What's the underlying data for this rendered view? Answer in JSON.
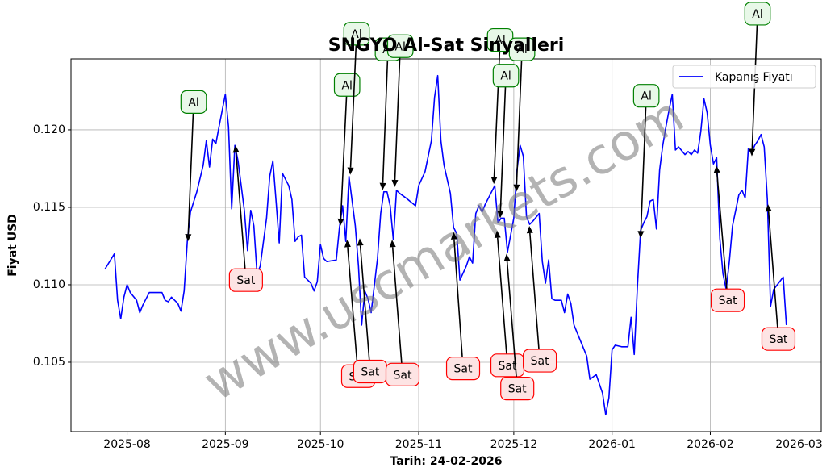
{
  "chart_data": {
    "type": "line",
    "title": "SNGYO Al-Sat Sinyalleri",
    "xlabel": "Tarih: 24-02-2026",
    "ylabel": "Fiyat USD",
    "watermark": "www.uscmarkets.com",
    "legend": "upper right",
    "grid": true,
    "xlim": [
      -10.7,
      226
    ],
    "ylim": [
      0.10052,
      0.12458
    ],
    "xticks": [
      {
        "value": 7,
        "label": "2025-08"
      },
      {
        "value": 38,
        "label": "2025-09"
      },
      {
        "value": 68,
        "label": "2025-10"
      },
      {
        "value": 99,
        "label": "2025-11"
      },
      {
        "value": 129,
        "label": "2025-12"
      },
      {
        "value": 160,
        "label": "2026-01"
      },
      {
        "value": 191,
        "label": "2026-02"
      },
      {
        "value": 219,
        "label": "2026-03"
      }
    ],
    "yticks": [
      0.105,
      {
        "value": 0.11,
        "label": "0.110"
      },
      0.115,
      {
        "value": 0.12,
        "label": "0.120"
      }
    ],
    "series": [
      {
        "name": "Kapanış Fiyatı",
        "color": "#0000ff",
        "x": [
          0,
          3,
          4,
          5,
          6,
          7,
          8,
          10,
          11,
          12,
          14,
          17,
          18,
          19,
          20,
          21,
          23,
          24,
          25,
          26,
          27,
          29,
          31,
          32,
          33,
          34,
          35,
          36,
          38,
          39,
          40,
          41,
          42,
          44,
          45,
          46,
          47,
          48,
          49,
          51,
          52,
          53,
          54,
          55,
          56,
          58,
          59,
          60,
          61,
          62,
          63,
          65,
          66,
          67,
          68,
          69,
          70,
          73,
          74,
          75,
          76,
          77,
          78,
          79,
          80,
          81,
          82,
          83,
          84,
          86,
          87,
          88,
          89,
          90,
          91,
          92,
          93,
          95,
          98,
          99,
          101,
          102,
          103,
          104,
          105,
          106,
          107,
          109,
          110,
          111,
          112,
          114,
          115,
          116,
          117,
          118,
          119,
          120,
          121,
          123,
          124,
          125,
          126,
          127,
          128,
          129,
          130,
          131,
          132,
          133,
          134,
          135,
          137,
          138,
          139,
          140,
          141,
          142,
          144,
          145,
          146,
          147,
          148,
          150,
          151,
          152,
          153,
          155,
          157,
          158,
          159,
          160,
          161,
          163,
          165,
          166,
          167,
          168,
          169,
          170,
          171,
          172,
          173,
          174,
          175,
          176,
          177,
          178,
          179,
          180,
          181,
          183,
          184,
          185,
          186,
          187,
          188,
          189,
          190,
          191,
          192,
          193,
          194,
          195,
          196,
          197,
          198,
          200,
          201,
          202,
          203,
          204,
          205,
          206,
          207,
          208,
          209,
          210,
          211,
          214,
          215
        ],
        "values": [
          0.111,
          0.112,
          0.109,
          0.1078,
          0.1092,
          0.11,
          0.1095,
          0.109,
          0.1082,
          0.1087,
          0.1095,
          0.1095,
          0.1095,
          0.109,
          0.1089,
          0.1092,
          0.1088,
          0.1083,
          0.1096,
          0.1128,
          0.1147,
          0.116,
          0.1177,
          0.1193,
          0.1176,
          0.1194,
          0.1191,
          0.1202,
          0.1223,
          0.1202,
          0.1149,
          0.119,
          0.118,
          0.1148,
          0.1122,
          0.1148,
          0.1138,
          0.1107,
          0.1112,
          0.1143,
          0.117,
          0.118,
          0.1154,
          0.1127,
          0.1172,
          0.1164,
          0.1155,
          0.1128,
          0.1131,
          0.1132,
          0.1105,
          0.1101,
          0.1096,
          0.1102,
          0.1126,
          0.1117,
          0.1115,
          0.1116,
          0.1137,
          0.1151,
          0.1128,
          0.117,
          0.1154,
          0.1138,
          0.1112,
          0.1074,
          0.1096,
          0.1091,
          0.1082,
          0.1117,
          0.1146,
          0.116,
          0.116,
          0.1151,
          0.1129,
          0.1161,
          0.1159,
          0.1156,
          0.1151,
          0.1164,
          0.1173,
          0.1183,
          0.1193,
          0.1221,
          0.1235,
          0.1193,
          0.1177,
          0.1159,
          0.1137,
          0.1133,
          0.1103,
          0.1112,
          0.1118,
          0.1114,
          0.1146,
          0.1151,
          0.1147,
          0.1152,
          0.1156,
          0.1164,
          0.114,
          0.1143,
          0.1143,
          0.1121,
          0.1132,
          0.1143,
          0.1174,
          0.119,
          0.1183,
          0.1144,
          0.1139,
          0.1141,
          0.1146,
          0.1115,
          0.1101,
          0.1116,
          0.1091,
          0.109,
          0.109,
          0.1082,
          0.1094,
          0.1088,
          0.1074,
          0.1064,
          0.1059,
          0.1054,
          0.1039,
          0.1042,
          0.103,
          0.1016,
          0.1027,
          0.1058,
          0.1061,
          0.106,
          0.106,
          0.1079,
          0.1055,
          0.1099,
          0.1135,
          0.114,
          0.1144,
          0.1154,
          0.1155,
          0.1136,
          0.1174,
          0.119,
          0.1202,
          0.1213,
          0.1223,
          0.1187,
          0.1189,
          0.1184,
          0.1186,
          0.1184,
          0.1187,
          0.1185,
          0.1199,
          0.122,
          0.1211,
          0.119,
          0.1178,
          0.1182,
          0.113,
          0.1107,
          0.1097,
          0.1115,
          0.1138,
          0.1158,
          0.1161,
          0.1156,
          0.1188,
          0.1185,
          0.119,
          0.1193,
          0.1197,
          0.1189,
          0.1155,
          0.1086,
          0.1097,
          0.1105,
          0.1074
        ]
      }
    ],
    "annotations": [
      {
        "text": "Al",
        "color": "green",
        "xy": [
          26.2,
          0.1128
        ],
        "xytext": [
          28.0,
          0.1218
        ]
      },
      {
        "text": "Sat",
        "color": "red",
        "xy": [
          41.2,
          0.119
        ],
        "xytext": [
          44.5,
          0.1103
        ]
      },
      {
        "text": "Al",
        "color": "green",
        "xy": [
          74.3,
          0.1138
        ],
        "xytext": [
          76.4,
          0.1229
        ]
      },
      {
        "text": "Al",
        "color": "green",
        "xy": [
          77.4,
          0.1171
        ],
        "xytext": [
          79.4,
          0.1262
        ]
      },
      {
        "text": "Sat",
        "color": "red",
        "xy": [
          76.4,
          0.1129
        ],
        "xytext": [
          79.9,
          0.1041
        ]
      },
      {
        "text": "Sat",
        "color": "red",
        "xy": [
          80.4,
          0.113
        ],
        "xytext": [
          83.7,
          0.1044
        ]
      },
      {
        "text": "Al",
        "color": "green",
        "xy": [
          87.6,
          0.1161
        ],
        "xytext": [
          89.3,
          0.1252
        ]
      },
      {
        "text": "Al",
        "color": "green",
        "xy": [
          91.4,
          0.1163
        ],
        "xytext": [
          93.2,
          0.1254
        ]
      },
      {
        "text": "Sat",
        "color": "red",
        "xy": [
          90.6,
          0.1129
        ],
        "xytext": [
          93.9,
          0.1042
        ]
      },
      {
        "text": "Sat",
        "color": "red",
        "xy": [
          110.0,
          0.1134
        ],
        "xytext": [
          113.0,
          0.1046
        ]
      },
      {
        "text": "Al",
        "color": "green",
        "xy": [
          122.7,
          0.1165
        ],
        "xytext": [
          124.7,
          0.1258
        ]
      },
      {
        "text": "Al",
        "color": "green",
        "xy": [
          124.7,
          0.1143
        ],
        "xytext": [
          126.5,
          0.1235
        ]
      },
      {
        "text": "Al",
        "color": "green",
        "xy": [
          129.8,
          0.116
        ],
        "xytext": [
          131.6,
          0.1252
        ]
      },
      {
        "text": "Sat",
        "color": "red",
        "xy": [
          123.7,
          0.1135
        ],
        "xytext": [
          127.0,
          0.1048
        ]
      },
      {
        "text": "Sat",
        "color": "red",
        "xy": [
          126.7,
          0.112
        ],
        "xytext": [
          130.1,
          0.1033
        ]
      },
      {
        "text": "Sat",
        "color": "red",
        "xy": [
          133.9,
          0.1138
        ],
        "xytext": [
          137.2,
          0.1051
        ]
      },
      {
        "text": "Al",
        "color": "green",
        "xy": [
          169.0,
          0.113
        ],
        "xytext": [
          170.8,
          0.1222
        ]
      },
      {
        "text": "Al",
        "color": "green",
        "xy": [
          204.1,
          0.1183
        ],
        "xytext": [
          205.9,
          0.1275
        ]
      },
      {
        "text": "Sat",
        "color": "red",
        "xy": [
          192.9,
          0.1177
        ],
        "xytext": [
          196.5,
          0.109
        ]
      },
      {
        "text": "Sat",
        "color": "red",
        "xy": [
          209.2,
          0.1152
        ],
        "xytext": [
          212.5,
          0.1065
        ]
      }
    ]
  }
}
